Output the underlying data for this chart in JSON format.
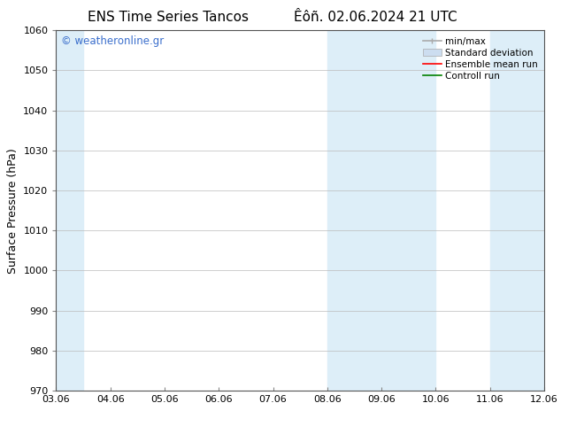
{
  "title_left": "ENS Time Series Tancos",
  "title_right": "Êôñ. 02.06.2024 21 UTC",
  "ylabel": "Surface Pressure (hPa)",
  "ylim": [
    970,
    1060
  ],
  "yticks": [
    970,
    980,
    990,
    1000,
    1010,
    1020,
    1030,
    1040,
    1050,
    1060
  ],
  "xtick_labels": [
    "03.06",
    "04.06",
    "05.06",
    "06.06",
    "07.06",
    "08.06",
    "09.06",
    "10.06",
    "11.06",
    "12.06"
  ],
  "xmin": 0,
  "xmax": 9,
  "shaded_bands": [
    {
      "xstart": -0.5,
      "xend": 0.5
    },
    {
      "xstart": 5,
      "xend": 7
    },
    {
      "xstart": 8,
      "xend": 9.5
    }
  ],
  "shade_color": "#ddeef8",
  "shade_alpha": 1.0,
  "watermark_text": "© weatheronline.gr",
  "watermark_color": "#3a6ecc",
  "legend_entries": [
    {
      "label": "min/max",
      "color": "#aaaaaa",
      "lw": 1.2
    },
    {
      "label": "Standard deviation",
      "color": "#ccddf0",
      "lw": 6
    },
    {
      "label": "Ensemble mean run",
      "color": "red",
      "lw": 1.2
    },
    {
      "label": "Controll run",
      "color": "green",
      "lw": 1.2
    }
  ],
  "bg_color": "#ffffff",
  "grid_color": "#bbbbbb",
  "title_fontsize": 11,
  "label_fontsize": 9,
  "tick_fontsize": 8,
  "watermark_fontsize": 8.5,
  "legend_fontsize": 7.5
}
